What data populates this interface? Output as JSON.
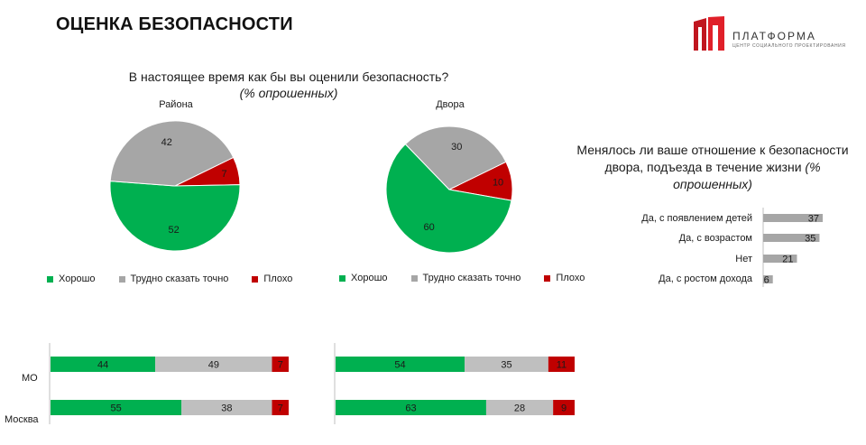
{
  "header": {
    "title": "ОЦЕНКА БЕЗОПАСНОСТИ",
    "logo_name": "ПЛАТФОРМА",
    "logo_subtitle": "ЦЕНТР СОЦИАЛЬНОГО ПРОЕКТИРОВАНИЯ"
  },
  "question1": {
    "text": "В настоящее время как бы вы оценили безопасность?",
    "unit": "(% опрошенных)"
  },
  "question2": {
    "text": "Менялось ли ваше отношение к безопасности двора, подъезда в течение жизни",
    "unit": "(% опрошенных)"
  },
  "colors": {
    "good": "#00b050",
    "hard": "#a6a6a6",
    "bad": "#c00000",
    "bar_gray": "#a6a6a6",
    "stack_hard": "#bfbfbf"
  },
  "legend": {
    "good": "Хорошо",
    "hard": "Трудно сказать точно",
    "bad": "Плохо"
  },
  "chart_data": [
    {
      "type": "pie",
      "title": "Района",
      "categories": [
        "Хорошо",
        "Трудно сказать точно",
        "Плохо"
      ],
      "values": [
        52,
        42,
        7
      ],
      "value_labels": [
        "52",
        "42",
        "7"
      ]
    },
    {
      "type": "pie",
      "title": "Двора",
      "categories": [
        "Хорошо",
        "Трудно сказать точно",
        "Плохо"
      ],
      "values": [
        60,
        30,
        10
      ],
      "value_labels": [
        "60",
        "30",
        "10"
      ]
    },
    {
      "type": "bar",
      "orientation": "horizontal",
      "categories": [
        "Да, с появлением детей",
        "Да, с возрастом",
        "Нет",
        "Да, с ростом дохода"
      ],
      "values": [
        37,
        35,
        21,
        6
      ],
      "value_labels": [
        "37",
        "35",
        "21",
        "6"
      ]
    },
    {
      "type": "bar",
      "stacked": true,
      "orientation": "horizontal",
      "categories": [
        "МО",
        "Москва"
      ],
      "series": [
        {
          "values": [
            44,
            55
          ],
          "labels": [
            "44",
            "55"
          ]
        },
        {
          "values": [
            49,
            38
          ],
          "labels": [
            "49",
            "38"
          ]
        },
        {
          "values": [
            7,
            7
          ],
          "labels": [
            "7",
            "7"
          ]
        }
      ]
    },
    {
      "type": "bar",
      "stacked": true,
      "orientation": "horizontal",
      "categories": [
        "МО",
        "Москва"
      ],
      "series": [
        {
          "values": [
            54,
            63
          ],
          "labels": [
            "54",
            "63"
          ]
        },
        {
          "values": [
            35,
            28
          ],
          "labels": [
            "35",
            "28"
          ]
        },
        {
          "values": [
            11,
            9
          ],
          "labels": [
            "11",
            "9"
          ]
        }
      ]
    }
  ]
}
